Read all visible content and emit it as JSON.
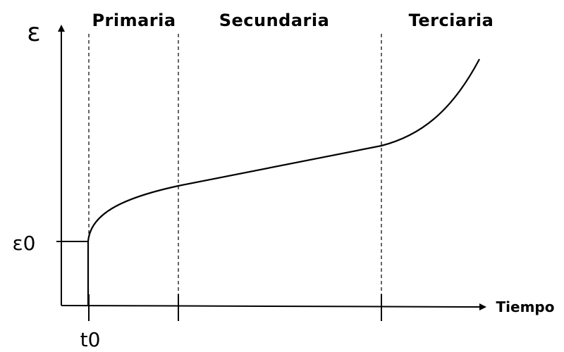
{
  "diagram": {
    "y_symbol": "ε",
    "x_axis_label": "Tiempo",
    "y_tick_label": "ε0",
    "x_tick_label": "t0",
    "stages": [
      {
        "label": "Primaria"
      },
      {
        "label": "Secundaria"
      },
      {
        "label": "Terciaria"
      }
    ]
  }
}
